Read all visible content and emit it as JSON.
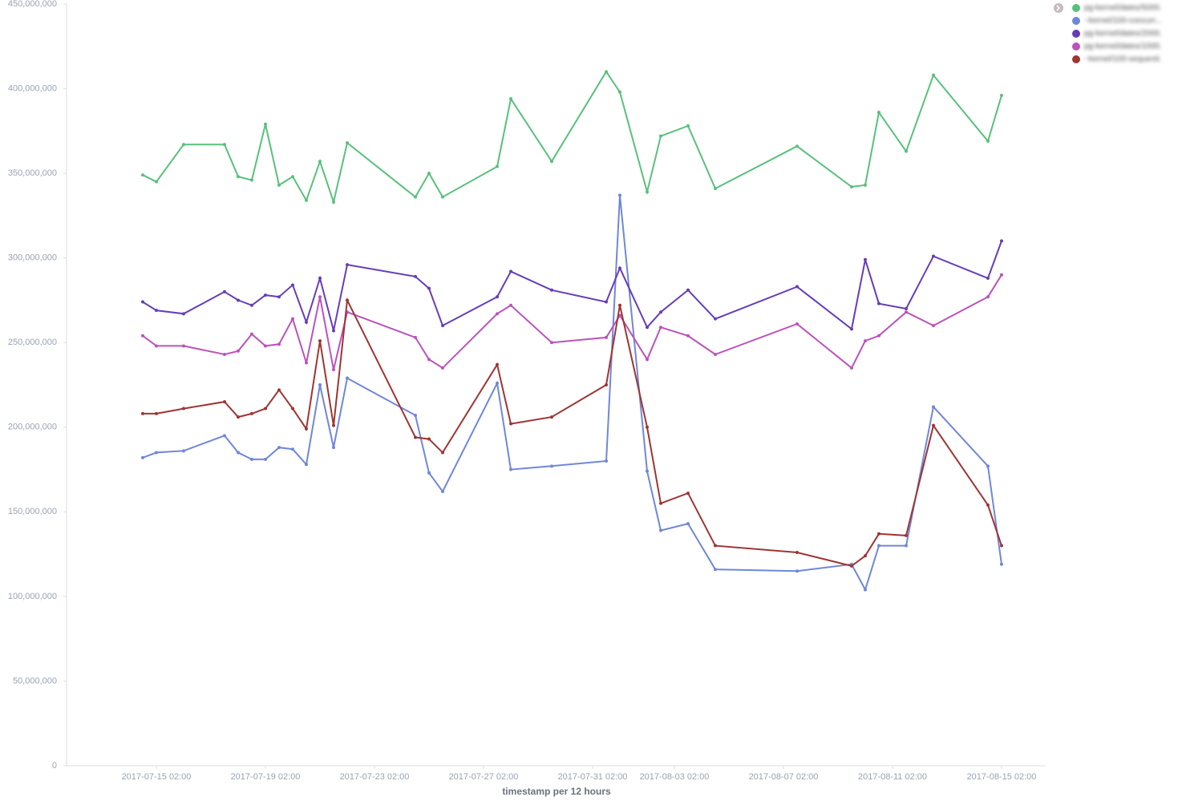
{
  "chart_data": {
    "type": "line",
    "x_label": "timestamp per 12 hours",
    "x": [
      "2017-07-14 14:00",
      "2017-07-15 02:00",
      "2017-07-16 02:00",
      "2017-07-17 14:00",
      "2017-07-18 02:00",
      "2017-07-18 14:00",
      "2017-07-19 02:00",
      "2017-07-19 14:00",
      "2017-07-20 02:00",
      "2017-07-20 14:00",
      "2017-07-21 02:00",
      "2017-07-21 14:00",
      "2017-07-22 02:00",
      "2017-07-24 14:00",
      "2017-07-25 02:00",
      "2017-07-25 14:00",
      "2017-07-27 14:00",
      "2017-07-28 02:00",
      "2017-07-29 14:00",
      "2017-07-31 14:00",
      "2017-08-01 02:00",
      "2017-08-02 02:00",
      "2017-08-02 14:00",
      "2017-08-03 14:00",
      "2017-08-04 14:00",
      "2017-08-07 14:00",
      "2017-08-09 14:00",
      "2017-08-10 02:00",
      "2017-08-10 14:00",
      "2017-08-11 14:00",
      "2017-08-12 14:00",
      "2017-08-14 14:00",
      "2017-08-15 02:00"
    ],
    "xlim": [
      "2017-07-12 02:00",
      "2017-08-16 14:00"
    ],
    "xticks": [
      "2017-07-15 02:00",
      "2017-07-19 02:00",
      "2017-07-23 02:00",
      "2017-07-27 02:00",
      "2017-07-31 02:00",
      "2017-08-03 02:00",
      "2017-08-07 02:00",
      "2017-08-11 02:00",
      "2017-08-15 02:00"
    ],
    "ylim": [
      0,
      450000000
    ],
    "yticks": [
      0,
      {
        "value": 50000000,
        "label": "50,000,000"
      },
      {
        "value": 100000000,
        "label": "100,000,000"
      },
      {
        "value": 150000000,
        "label": "150,000,000"
      },
      {
        "value": 200000000,
        "label": "200,000,000"
      },
      {
        "value": 250000000,
        "label": "250,000,000"
      },
      {
        "value": 300000000,
        "label": "300,000,000"
      },
      {
        "value": 350000000,
        "label": "350,000,000"
      },
      {
        "value": 400000000,
        "label": "400,000,000"
      },
      {
        "value": 450000000,
        "label": "450,000,000"
      }
    ],
    "legend": "top-right",
    "series": [
      {
        "name": "pg-kernel/dates/5000.",
        "color": "#57c17b",
        "values": [
          349000000,
          345000000,
          367000000,
          367000000,
          348000000,
          346000000,
          379000000,
          343000000,
          348000000,
          334000000,
          357000000,
          333000000,
          368000000,
          336000000,
          350000000,
          336000000,
          354000000,
          394000000,
          357000000,
          410000000,
          398000000,
          339000000,
          372000000,
          378000000,
          341000000,
          366000000,
          342000000,
          343000000,
          386000000,
          363000000,
          408000000,
          369000000,
          396000000
        ]
      },
      {
        "name": "~kernel/100-concurr...",
        "color": "#6f87d8",
        "values": [
          182000000,
          185000000,
          186000000,
          195000000,
          185000000,
          181000000,
          181000000,
          188000000,
          187000000,
          178000000,
          225000000,
          188000000,
          229000000,
          207000000,
          173000000,
          162000000,
          226000000,
          175000000,
          177000000,
          180000000,
          337000000,
          174000000,
          139000000,
          143000000,
          116000000,
          115000000,
          119000000,
          104000000,
          130000000,
          130000000,
          212000000,
          177000000,
          119000000
        ]
      },
      {
        "name": "pg-kernel/dates/2000.",
        "color": "#663db8",
        "values": [
          274000000,
          269000000,
          267000000,
          280000000,
          275000000,
          272000000,
          278000000,
          277000000,
          284000000,
          262000000,
          288000000,
          257000000,
          296000000,
          289000000,
          282000000,
          260000000,
          277000000,
          292000000,
          281000000,
          274000000,
          294000000,
          259000000,
          268000000,
          281000000,
          264000000,
          283000000,
          258000000,
          299000000,
          273000000,
          270000000,
          301000000,
          288000000,
          310000000
        ]
      },
      {
        "name": "pg-kernel/dates/1000.",
        "color": "#bc52bc",
        "values": [
          254000000,
          248000000,
          248000000,
          243000000,
          245000000,
          255000000,
          248000000,
          249000000,
          264000000,
          238000000,
          277000000,
          234000000,
          268000000,
          253000000,
          240000000,
          235000000,
          267000000,
          272000000,
          250000000,
          253000000,
          266000000,
          240000000,
          259000000,
          254000000,
          243000000,
          261000000,
          235000000,
          251000000,
          254000000,
          268000000,
          260000000,
          277000000,
          290000000
        ]
      },
      {
        "name": "~kernel/100-sequenti.",
        "color": "#9e3533",
        "values": [
          208000000,
          208000000,
          211000000,
          215000000,
          206000000,
          208000000,
          211000000,
          222000000,
          211000000,
          199000000,
          251000000,
          201000000,
          275000000,
          194000000,
          193000000,
          185000000,
          237000000,
          202000000,
          206000000,
          225000000,
          272000000,
          200000000,
          155000000,
          161000000,
          130000000,
          126000000,
          118000000,
          124000000,
          137000000,
          136000000,
          201000000,
          154000000,
          130000000
        ]
      }
    ]
  }
}
